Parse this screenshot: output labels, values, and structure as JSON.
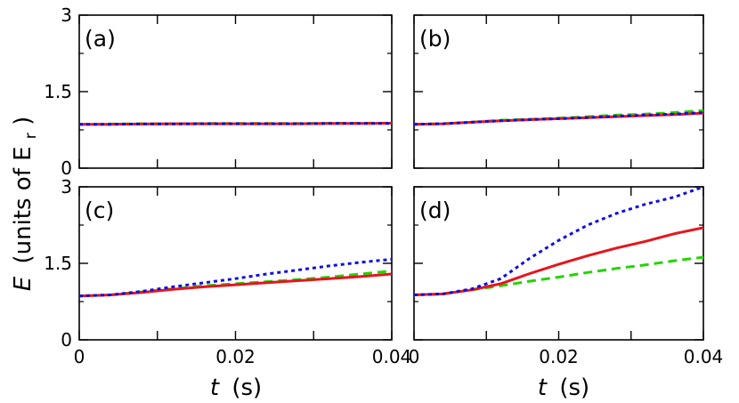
{
  "figure": {
    "ylabel_symbol": "E",
    "ylabel_units": "(units of E",
    "ylabel_sub": "r",
    "ylabel_close": ")",
    "xlabel_symbol": "t",
    "xlabel_units": "(s)"
  },
  "colors": {
    "series_solid": "#e8141c",
    "series_dashed": "#23d400",
    "series_dotted": "#1010dd"
  },
  "chart_data": [
    {
      "type": "line",
      "panel": "(a)",
      "xlim": [
        0,
        0.04
      ],
      "ylim": [
        0,
        3
      ],
      "xticks": [
        "0",
        "0.02",
        "0.04"
      ],
      "yticks": [
        "0",
        "1.5",
        "3"
      ],
      "x": [
        0,
        0.004,
        0.008,
        0.012,
        0.016,
        0.02,
        0.024,
        0.028,
        0.032,
        0.036,
        0.04
      ],
      "series": [
        {
          "style": "solid",
          "values": [
            0.86,
            0.86,
            0.865,
            0.87,
            0.87,
            0.87,
            0.87,
            0.87,
            0.875,
            0.875,
            0.88
          ]
        },
        {
          "style": "dashed",
          "values": [
            0.86,
            0.865,
            0.87,
            0.87,
            0.875,
            0.875,
            0.875,
            0.875,
            0.88,
            0.88,
            0.88
          ]
        },
        {
          "style": "dotted",
          "values": [
            0.86,
            0.86,
            0.865,
            0.865,
            0.87,
            0.87,
            0.87,
            0.87,
            0.875,
            0.875,
            0.875
          ]
        }
      ]
    },
    {
      "type": "line",
      "panel": "(b)",
      "xlim": [
        0,
        0.04
      ],
      "ylim": [
        0,
        3
      ],
      "xticks": [
        "0",
        "0.02",
        "0.04"
      ],
      "yticks": [
        "0",
        "1.5",
        "3"
      ],
      "x": [
        0,
        0.004,
        0.008,
        0.012,
        0.016,
        0.02,
        0.024,
        0.028,
        0.032,
        0.036,
        0.04
      ],
      "series": [
        {
          "style": "solid",
          "values": [
            0.86,
            0.87,
            0.9,
            0.93,
            0.95,
            0.97,
            0.99,
            1.01,
            1.03,
            1.05,
            1.08
          ]
        },
        {
          "style": "dashed",
          "values": [
            0.86,
            0.87,
            0.9,
            0.94,
            0.96,
            0.98,
            1.01,
            1.04,
            1.06,
            1.09,
            1.13
          ]
        },
        {
          "style": "dotted",
          "values": [
            0.86,
            0.87,
            0.9,
            0.93,
            0.95,
            0.97,
            0.99,
            1.02,
            1.04,
            1.06,
            1.09
          ]
        }
      ]
    },
    {
      "type": "line",
      "panel": "(c)",
      "xlim": [
        0,
        0.04
      ],
      "ylim": [
        0,
        3
      ],
      "xticks": [
        "0",
        "0.02",
        "0.04"
      ],
      "yticks": [
        "0",
        "1.5",
        "3"
      ],
      "x": [
        0,
        0.004,
        0.008,
        0.012,
        0.016,
        0.02,
        0.024,
        0.028,
        0.032,
        0.036,
        0.04
      ],
      "series": [
        {
          "style": "solid",
          "values": [
            0.86,
            0.88,
            0.93,
            0.99,
            1.04,
            1.08,
            1.12,
            1.16,
            1.2,
            1.24,
            1.29
          ]
        },
        {
          "style": "dashed",
          "values": [
            0.86,
            0.88,
            0.94,
            1.0,
            1.06,
            1.1,
            1.14,
            1.18,
            1.23,
            1.29,
            1.35
          ]
        },
        {
          "style": "dotted",
          "values": [
            0.86,
            0.88,
            0.95,
            1.04,
            1.12,
            1.2,
            1.29,
            1.37,
            1.45,
            1.52,
            1.58
          ]
        }
      ]
    },
    {
      "type": "line",
      "panel": "(d)",
      "xlim": [
        0,
        0.04
      ],
      "ylim": [
        0,
        3
      ],
      "xticks": [
        "0",
        "0.02",
        "0.04"
      ],
      "yticks": [
        "0",
        "1.5",
        "3"
      ],
      "x": [
        0,
        0.004,
        0.008,
        0.012,
        0.016,
        0.02,
        0.024,
        0.028,
        0.032,
        0.036,
        0.04
      ],
      "series": [
        {
          "style": "solid",
          "values": [
            0.88,
            0.9,
            0.98,
            1.1,
            1.3,
            1.48,
            1.65,
            1.8,
            1.93,
            2.08,
            2.2
          ]
        },
        {
          "style": "dashed",
          "values": [
            0.88,
            0.9,
            0.98,
            1.06,
            1.15,
            1.23,
            1.32,
            1.4,
            1.47,
            1.55,
            1.62
          ]
        },
        {
          "style": "dotted",
          "values": [
            0.88,
            0.9,
            1.0,
            1.2,
            1.6,
            1.95,
            2.25,
            2.48,
            2.66,
            2.8,
            3.0
          ]
        }
      ]
    }
  ]
}
